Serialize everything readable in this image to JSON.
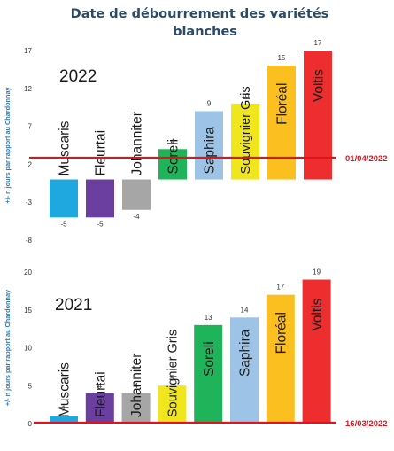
{
  "title_line1": "Date de débourrement des variétés",
  "title_line2": "blanches",
  "colors": {
    "Muscaris": "#1fa8e0",
    "Fleurtai": "#6b3fa0",
    "Johanniter": "#a6a6a6",
    "Souvignier Gris": "#f0e61e",
    "Soreli": "#1fb45a",
    "Saphira": "#9dc3e6",
    "Floréal": "#fbbf20",
    "Voltis": "#ee2e2e",
    "reference_line": "#e0141e",
    "axis_label": "#2e7bbf"
  },
  "chart_data": [
    {
      "type": "bar",
      "year_label": "2022",
      "ylabel": "+/- n jours par rapport au Chardonnay",
      "ylim": [
        -8,
        17
      ],
      "yticks": [
        17,
        12,
        7,
        2,
        -3,
        -8
      ],
      "reference_label": "01/04/2022",
      "grid": false,
      "categories": [
        "Muscaris",
        "Fleurtai",
        "Johanniter",
        "Soreli",
        "Saphira",
        "Souvignier Gris",
        "Floréal",
        "Voltis"
      ],
      "values": [
        -5,
        -5,
        -4,
        4,
        9,
        10,
        15,
        17
      ]
    },
    {
      "type": "bar",
      "year_label": "2021",
      "ylabel": "+/- n jours par rapport au Chardonnay",
      "ylim": [
        0,
        20
      ],
      "yticks": [
        20,
        15,
        10,
        5,
        0
      ],
      "reference_label": "16/03/2022",
      "grid": false,
      "categories": [
        "Muscaris",
        "Fleurtai",
        "Johanniter",
        "Souvignier Gris",
        "Soreli",
        "Saphira",
        "Floréal",
        "Voltis"
      ],
      "values": [
        1,
        4,
        4,
        5,
        13,
        14,
        17,
        19
      ]
    }
  ]
}
